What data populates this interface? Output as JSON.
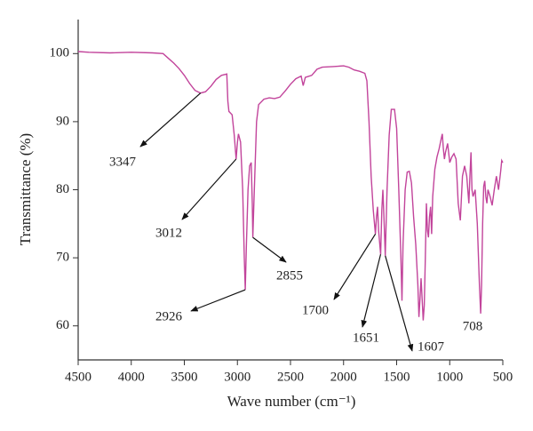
{
  "chart_data": {
    "type": "line",
    "xlabel": "Wave number (cm⁻¹)",
    "ylabel": "Transmittance (%)",
    "xlim": [
      4500,
      500
    ],
    "ylim": [
      55,
      105
    ],
    "xticks": [
      4500,
      4000,
      3500,
      3000,
      2500,
      2000,
      1500,
      1000,
      500
    ],
    "yticks": [
      60,
      70,
      80,
      90,
      100
    ],
    "color": "#c2449b",
    "x": [
      4500,
      4400,
      4200,
      4000,
      3800,
      3700,
      3650,
      3600,
      3550,
      3500,
      3450,
      3400,
      3347,
      3300,
      3250,
      3200,
      3150,
      3100,
      3090,
      3080,
      3050,
      3030,
      3012,
      3000,
      2990,
      2970,
      2950,
      2935,
      2926,
      2915,
      2900,
      2885,
      2870,
      2860,
      2855,
      2845,
      2820,
      2800,
      2750,
      2700,
      2650,
      2600,
      2550,
      2500,
      2450,
      2400,
      2380,
      2360,
      2300,
      2250,
      2200,
      2100,
      2000,
      1950,
      1900,
      1850,
      1800,
      1780,
      1760,
      1740,
      1720,
      1700,
      1690,
      1680,
      1670,
      1651,
      1640,
      1630,
      1620,
      1607,
      1590,
      1570,
      1550,
      1520,
      1500,
      1480,
      1460,
      1450,
      1440,
      1420,
      1400,
      1380,
      1360,
      1340,
      1320,
      1300,
      1290,
      1280,
      1270,
      1260,
      1250,
      1240,
      1230,
      1220,
      1210,
      1200,
      1190,
      1180,
      1170,
      1160,
      1140,
      1120,
      1100,
      1080,
      1070,
      1060,
      1050,
      1040,
      1020,
      1000,
      980,
      960,
      940,
      920,
      900,
      880,
      860,
      840,
      820,
      810,
      800,
      790,
      780,
      760,
      740,
      720,
      708,
      700,
      690,
      680,
      670,
      660,
      650,
      640,
      620,
      600,
      580,
      560,
      540,
      520,
      510,
      500
    ],
    "y": [
      100.3,
      100.2,
      100.1,
      100.2,
      100.1,
      100.0,
      99.3,
      98.6,
      97.8,
      96.8,
      95.6,
      94.6,
      94.2,
      94.4,
      95.2,
      96.2,
      96.8,
      97.0,
      93,
      91.5,
      91,
      88,
      84.5,
      87,
      88.2,
      87,
      80,
      70,
      65.3,
      72,
      80,
      83.5,
      84,
      78,
      73,
      78,
      90,
      92.5,
      93.3,
      93.5,
      93.4,
      93.6,
      94.5,
      95.5,
      96.3,
      96.7,
      95.3,
      96.5,
      96.8,
      97.7,
      98,
      98.1,
      98.2,
      98.0,
      97.6,
      97.4,
      97.1,
      96,
      90,
      82,
      77,
      73.5,
      76,
      77.5,
      74,
      70.5,
      77,
      80,
      76,
      70.3,
      80,
      88,
      91.8,
      91.8,
      89,
      80,
      70,
      63.7,
      72,
      80,
      82.6,
      82.7,
      81,
      76,
      72,
      66,
      61.3,
      64,
      67,
      64,
      60.8,
      63,
      70,
      78,
      74,
      73,
      76,
      77.5,
      73.5,
      79,
      83,
      84.8,
      86,
      87.5,
      88.2,
      86,
      84.5,
      85.5,
      86.8,
      84,
      84.8,
      85.3,
      84.5,
      78,
      75.5,
      82,
      83.5,
      82,
      78,
      82,
      85.5,
      80,
      79,
      80,
      75,
      66,
      61.8,
      66,
      75,
      80.5,
      81.3,
      79,
      78,
      80,
      79,
      77.7,
      80,
      82,
      80,
      82.7,
      84.3,
      84
    ],
    "annotations": [
      {
        "x": 3347,
        "y": 94.2,
        "label": "3347"
      },
      {
        "x": 3012,
        "y": 84.5,
        "label": "3012"
      },
      {
        "x": 2926,
        "y": 65.3,
        "label": "2926"
      },
      {
        "x": 2855,
        "y": 73,
        "label": "2855"
      },
      {
        "x": 1700,
        "y": 73.5,
        "label": "1700"
      },
      {
        "x": 1651,
        "y": 70.5,
        "label": "1651"
      },
      {
        "x": 1607,
        "y": 70.3,
        "label": "1607"
      },
      {
        "x": 708,
        "y": 61.8,
        "label": "708"
      }
    ]
  }
}
